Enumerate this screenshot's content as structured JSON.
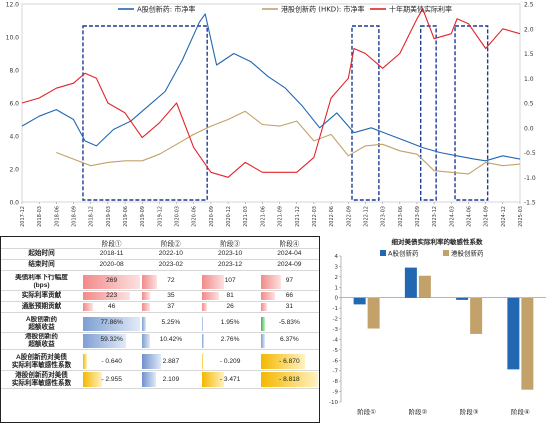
{
  "chart_data": [
    {
      "type": "line",
      "legend": [
        "A股创新药: 市净率",
        "港股创新药 (HKD): 市净率",
        "十年期美债实际利率"
      ],
      "series_colors": [
        "#2267b1",
        "#c2a26a",
        "#e2242a"
      ],
      "left_axis_ticks": [
        "0.0",
        "2.0",
        "4.0",
        "6.0",
        "8.0",
        "10.0",
        "12.0"
      ],
      "right_axis_ticks": [
        "-1.5",
        "-1.0",
        "-0.5",
        "0.0",
        "0.5",
        "1.0",
        "1.5",
        "2.0",
        "2.5"
      ],
      "ylim_left": [
        0,
        12
      ],
      "ylim_right": [
        -1.5,
        2.5
      ],
      "x_ticks": [
        "2017-12",
        "2018-03",
        "2018-06",
        "2018-09",
        "2018-12",
        "2019-03",
        "2019-06",
        "2019-09",
        "2019-12",
        "2020-03",
        "2020-06",
        "2020-09",
        "2020-12",
        "2021-03",
        "2021-06",
        "2021-09",
        "2021-12",
        "2022-03",
        "2022-06",
        "2022-09",
        "2022-12",
        "2023-03",
        "2023-06",
        "2023-09",
        "2023-12",
        "2024-03",
        "2024-06",
        "2024-09",
        "2024-12",
        "2025-03"
      ],
      "date_range": [
        "2017-12",
        "2025-03"
      ],
      "series": [
        {
          "name": "A股创新药: 市净率",
          "axis": "left",
          "x": [
            "2017-12",
            "2018-03",
            "2018-06",
            "2018-09",
            "2018-11",
            "2019-01",
            "2019-04",
            "2019-07",
            "2019-10",
            "2020-01",
            "2020-04",
            "2020-07",
            "2020-08",
            "2020-10",
            "2021-01",
            "2021-04",
            "2021-07",
            "2021-10",
            "2022-01",
            "2022-04",
            "2022-07",
            "2022-10",
            "2023-01",
            "2023-04",
            "2023-07",
            "2023-10",
            "2024-01",
            "2024-04",
            "2024-07",
            "2024-09",
            "2024-12",
            "2025-03"
          ],
          "values": [
            4.6,
            5.2,
            5.6,
            5.0,
            3.7,
            3.4,
            4.4,
            4.9,
            5.8,
            6.7,
            8.6,
            10.9,
            11.4,
            8.3,
            9.0,
            8.5,
            7.6,
            6.9,
            5.8,
            4.5,
            5.4,
            4.2,
            4.5,
            4.1,
            3.7,
            3.3,
            3.0,
            2.8,
            2.6,
            2.5,
            2.8,
            2.6
          ]
        },
        {
          "name": "港股创新药 (HKD): 市净率",
          "axis": "left",
          "x": [
            "2018-06",
            "2018-09",
            "2018-12",
            "2019-03",
            "2019-06",
            "2019-09",
            "2019-12",
            "2020-03",
            "2020-06",
            "2020-09",
            "2020-12",
            "2021-03",
            "2021-06",
            "2021-09",
            "2021-12",
            "2022-03",
            "2022-06",
            "2022-09",
            "2022-12",
            "2023-03",
            "2023-06",
            "2023-09",
            "2023-12",
            "2024-03",
            "2024-06",
            "2024-09",
            "2024-12",
            "2025-03"
          ],
          "values": [
            3.0,
            2.6,
            2.2,
            2.4,
            2.5,
            2.5,
            2.9,
            3.5,
            4.1,
            4.6,
            5.0,
            5.5,
            4.7,
            4.6,
            4.9,
            3.7,
            4.1,
            2.8,
            3.4,
            3.5,
            3.1,
            2.9,
            1.9,
            1.8,
            1.7,
            2.4,
            2.2,
            2.3
          ]
        },
        {
          "name": "十年期美债实际利率",
          "axis": "right",
          "x": [
            "2017-12",
            "2018-03",
            "2018-06",
            "2018-09",
            "2018-11",
            "2019-01",
            "2019-03",
            "2019-06",
            "2019-09",
            "2019-12",
            "2020-03",
            "2020-06",
            "2020-09",
            "2020-12",
            "2021-03",
            "2021-06",
            "2021-09",
            "2021-12",
            "2022-03",
            "2022-06",
            "2022-09",
            "2022-10",
            "2022-12",
            "2023-03",
            "2023-06",
            "2023-09",
            "2023-10",
            "2023-12",
            "2024-03",
            "2024-04",
            "2024-06",
            "2024-09",
            "2024-12",
            "2025-03"
          ],
          "values": [
            0.5,
            0.6,
            0.8,
            0.9,
            1.1,
            1.0,
            0.5,
            0.3,
            -0.2,
            0.1,
            0.5,
            -0.4,
            -0.9,
            -1.0,
            -0.7,
            -0.9,
            -0.9,
            -0.9,
            -0.6,
            0.6,
            1.0,
            1.6,
            1.5,
            1.2,
            1.5,
            2.2,
            2.4,
            1.8,
            1.9,
            2.2,
            2.1,
            1.6,
            2.0,
            1.9
          ]
        }
      ],
      "highlight_periods": [
        [
          "2018-11",
          "2020-08"
        ],
        [
          "2022-10",
          "2023-02"
        ],
        [
          "2023-10",
          "2023-12"
        ],
        [
          "2024-04",
          "2024-09"
        ]
      ]
    },
    {
      "type": "bar",
      "title": "细对美债实际利率的敏感性系数",
      "categories": [
        "阶段①",
        "阶段②",
        "阶段③",
        "阶段④"
      ],
      "series": [
        {
          "name": "A股创新药",
          "values": [
            -0.64,
            2.887,
            -0.209,
            -6.87
          ]
        },
        {
          "name": "港股创新药",
          "values": [
            -2.955,
            2.109,
            -3.471,
            -8.818
          ]
        }
      ],
      "ylim": [
        -10,
        4
      ],
      "y_ticks": [
        "4",
        "3",
        "2",
        "1",
        "0",
        "-1",
        "-2",
        "-3",
        "-4",
        "-5",
        "-6",
        "-7",
        "-8",
        "-9",
        "-10"
      ],
      "colors": {
        "A": "#2267b1",
        "HK": "#c2a26a"
      }
    }
  ],
  "table": {
    "headers": [
      "阶段①",
      "阶段②",
      "阶段③",
      "阶段④"
    ],
    "rows": [
      {
        "label": "起始时间",
        "values": [
          "2018-11",
          "2022-10",
          "2023-10",
          "2024-04"
        ]
      },
      {
        "label": "结束时间",
        "values": [
          "2020-08",
          "2023-02",
          "2023-12",
          "2024-09"
        ]
      },
      {
        "label": "美债利率下行幅度",
        "label2": "(bps)",
        "values": [
          "269",
          "72",
          "107",
          "97"
        ],
        "num": [
          269,
          72,
          107,
          97
        ],
        "max": 269,
        "bar": "red"
      },
      {
        "label": "实际利率贡献",
        "values": [
          "223",
          "35",
          "81",
          "66"
        ],
        "num": [
          223,
          35,
          81,
          66
        ],
        "max": 269,
        "bar": "red"
      },
      {
        "label": "通胀预期贡献",
        "values": [
          "46",
          "37",
          "26",
          "31"
        ],
        "num": [
          46,
          37,
          26,
          31
        ],
        "max": 269,
        "bar": "red"
      },
      {
        "label": "A股创新药",
        "label2": "超额收益",
        "values": [
          "77.86%",
          "5.25%",
          "1.95%",
          "-5.83%"
        ],
        "num": [
          77.86,
          5.25,
          1.95,
          -5.83
        ],
        "max": 77.86,
        "bar": "blue"
      },
      {
        "label": "港股创新药",
        "label2": "超额收益",
        "values": [
          "59.32%",
          "10.42%",
          "2.76%",
          "6.37%"
        ],
        "num": [
          59.32,
          10.42,
          2.76,
          6.37
        ],
        "max": 77.86,
        "bar": "blue"
      },
      {
        "label": "A股创新药对美债",
        "label2": "实际利率敏感性系数",
        "values": [
          "- 0.640",
          "2.887",
          "- 0.209",
          "- 6.870"
        ],
        "num": [
          -0.64,
          2.887,
          -0.209,
          -6.87
        ],
        "max": 8.818,
        "bar": "mixed"
      },
      {
        "label": "港股创新药对美债",
        "label2": "实际利率敏感性系数",
        "values": [
          "- 2.955",
          "2.109",
          "- 3.471",
          "- 8.818"
        ],
        "num": [
          -2.955,
          2.109,
          -3.471,
          -8.818
        ],
        "max": 8.818,
        "bar": "mixed"
      }
    ]
  }
}
